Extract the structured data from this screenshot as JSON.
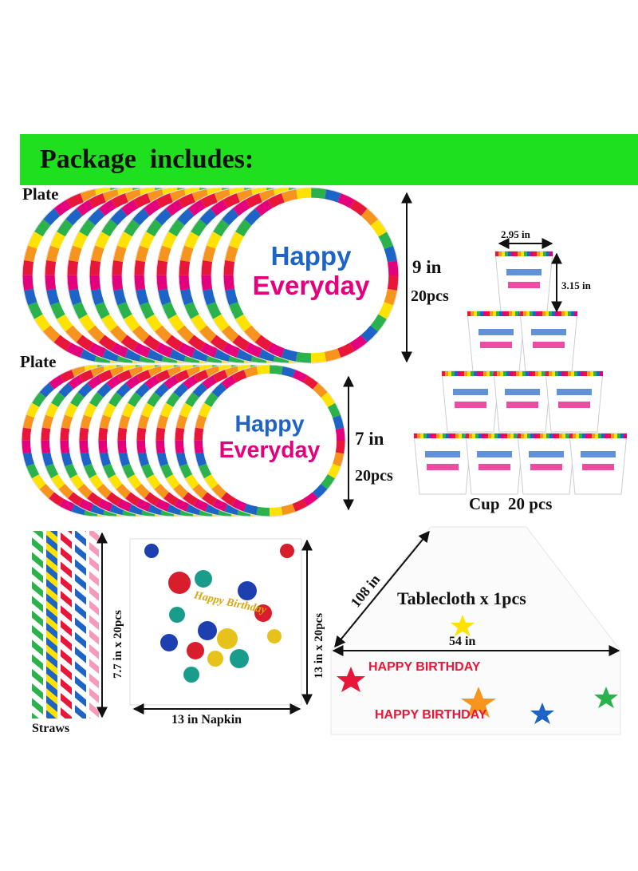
{
  "header": {
    "title": "Package  includes:"
  },
  "plates": [
    {
      "label": "Plate",
      "size": "9 in",
      "count": "20pcs",
      "print_top": "Happy",
      "print_bottom": "Everyday"
    },
    {
      "label": "Plate",
      "size": "7 in",
      "count": "20pcs",
      "print_top": "Happy",
      "print_bottom": "Everyday"
    }
  ],
  "cups": {
    "width": "2.95 in",
    "height": "3.15 in",
    "label": "Cup  20 pcs"
  },
  "straws": {
    "size": "7.7 in x 20pcs",
    "label": "Straws"
  },
  "napkin": {
    "print": "Happy Birthday",
    "size": "13 in x 20pcs",
    "label": "13 in Napkin"
  },
  "tablecloth": {
    "length": "108 in",
    "label": "Tablecloth x 1pcs",
    "width": "54 in",
    "print": "HAPPY BIRTHDAY"
  }
}
